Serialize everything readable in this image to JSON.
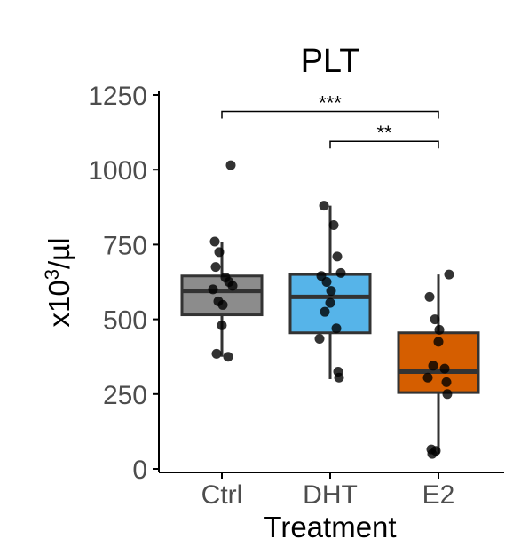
{
  "chart_data": {
    "type": "box",
    "title": "PLT",
    "xlabel": "Treatment",
    "ylabel_base": "x10",
    "ylabel_sup": "3",
    "ylabel_unit": "/µl",
    "ylim": [
      0,
      1250
    ],
    "yticks": [
      "0",
      "250",
      "500",
      "750",
      "1000",
      "1250"
    ],
    "ytick_values": [
      0,
      250,
      500,
      750,
      1000,
      1250
    ],
    "categories": [
      "Ctrl",
      "DHT",
      "E2"
    ],
    "colors": [
      "#8c8c8c",
      "#56b4e9",
      "#d55e00"
    ],
    "boxes": [
      {
        "name": "Ctrl",
        "whisker_low": 375,
        "q1": 515,
        "median": 595,
        "q3": 645,
        "whisker_high": 760,
        "points": [
          1015,
          760,
          725,
          675,
          640,
          625,
          612,
          600,
          560,
          548,
          480,
          385,
          375
        ]
      },
      {
        "name": "DHT",
        "whisker_low": 300,
        "q1": 455,
        "median": 575,
        "q3": 650,
        "whisker_high": 880,
        "points": [
          880,
          815,
          710,
          655,
          645,
          625,
          595,
          555,
          525,
          470,
          435,
          325,
          305
        ]
      },
      {
        "name": "E2",
        "whisker_low": 50,
        "q1": 255,
        "median": 325,
        "q3": 455,
        "whisker_high": 650,
        "points": [
          650,
          575,
          500,
          465,
          425,
          345,
          335,
          305,
          290,
          250,
          65,
          60,
          50
        ]
      }
    ],
    "significance": [
      {
        "from": "Ctrl",
        "to": "E2",
        "label": "***",
        "y": 1195
      },
      {
        "from": "DHT",
        "to": "E2",
        "label": "**",
        "y": 1095
      }
    ]
  }
}
